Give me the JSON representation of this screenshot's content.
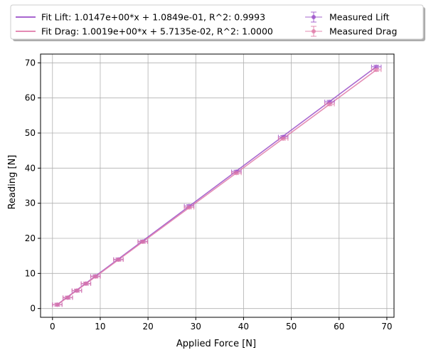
{
  "chart_data": {
    "type": "scatter",
    "xlabel": "Applied Force [N]",
    "ylabel": "Reading [N]",
    "xlim": [
      -2.5,
      71.5
    ],
    "ylim": [
      -2.5,
      72.5
    ],
    "xticks": [
      0,
      10,
      20,
      30,
      40,
      50,
      60,
      70
    ],
    "yticks": [
      0,
      10,
      20,
      30,
      40,
      50,
      60,
      70
    ],
    "grid": true,
    "legend_position": "top (above plot), 2 columns",
    "colors": {
      "lift": "#9b4fc8",
      "drag": "#e07aa8",
      "overlap": "#b5409c"
    },
    "series": [
      {
        "name": "Measured Lift",
        "kind": "errorbar",
        "color": "#9b4fc8",
        "x": [
          1.0,
          3.2,
          5.1,
          7.0,
          9.0,
          13.8,
          18.9,
          28.6,
          38.5,
          48.3,
          58.0,
          67.8
        ],
        "y": [
          1.1,
          3.1,
          5.1,
          7.1,
          9.2,
          14.0,
          19.1,
          29.2,
          39.0,
          48.9,
          58.9,
          68.9
        ],
        "xerr": 1.0,
        "yerr": 0.4
      },
      {
        "name": "Measured Drag",
        "kind": "errorbar",
        "color": "#e07aa8",
        "x": [
          1.0,
          3.2,
          5.1,
          7.0,
          9.0,
          13.8,
          18.9,
          28.6,
          38.5,
          48.3,
          58.0,
          67.8
        ],
        "y": [
          1.1,
          3.1,
          5.1,
          7.1,
          9.1,
          13.9,
          19.0,
          28.8,
          38.6,
          48.4,
          58.2,
          68.0
        ],
        "xerr": 1.0,
        "yerr": 0.4
      },
      {
        "name": "Fit Lift: 1.0147e+00*x + 1.0849e-01, R^2: 0.9993",
        "kind": "fit",
        "color": "#9b4fc8",
        "slope": 1.0147,
        "intercept": 0.10849,
        "x_range": [
          1.0,
          67.8
        ]
      },
      {
        "name": "Fit Drag: 1.0019e+00*x + 5.7135e-02, R^2: 1.0000",
        "kind": "fit",
        "color": "#e07aa8",
        "slope": 1.0019,
        "intercept": 0.057135,
        "x_range": [
          1.0,
          67.8
        ]
      }
    ],
    "legend": [
      {
        "label": "Fit Lift: 1.0147e+00*x + 1.0849e-01, R^2: 0.9993",
        "marker": "line",
        "color": "#9b4fc8"
      },
      {
        "label": "Fit Drag: 1.0019e+00*x + 5.7135e-02, R^2: 1.0000",
        "marker": "line",
        "color": "#e07aa8"
      },
      {
        "label": "Measured Lift",
        "marker": "errorbar",
        "color": "#9b4fc8"
      },
      {
        "label": "Measured Drag",
        "marker": "errorbar",
        "color": "#e07aa8"
      }
    ]
  }
}
